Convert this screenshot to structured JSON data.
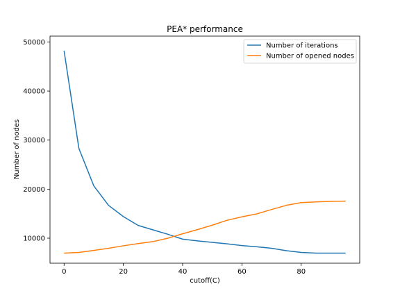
{
  "chart_data": {
    "type": "line",
    "title": "PEA* performance",
    "xlabel": "cutoff(C)",
    "ylabel": "Number of nodes",
    "xlim": [
      -4.75,
      99.75
    ],
    "ylim": [
      4900,
      51200
    ],
    "xticks": [
      0,
      20,
      40,
      60,
      80
    ],
    "yticks": [
      10000,
      20000,
      30000,
      40000,
      50000
    ],
    "x": [
      0,
      5,
      10,
      15,
      20,
      25,
      30,
      35,
      40,
      45,
      50,
      55,
      60,
      65,
      70,
      75,
      80,
      85,
      90,
      95
    ],
    "series": [
      {
        "name": "Number of iterations",
        "color": "#1f77b4",
        "values": [
          48200,
          28300,
          20700,
          16700,
          14400,
          12600,
          11700,
          10800,
          9800,
          9450,
          9150,
          8850,
          8500,
          8250,
          7950,
          7450,
          7100,
          6950,
          6950,
          6950
        ]
      },
      {
        "name": "Number of opened nodes",
        "color": "#ff7f0e",
        "values": [
          6950,
          7100,
          7500,
          7950,
          8450,
          8900,
          9300,
          10000,
          10900,
          11750,
          12650,
          13650,
          14350,
          14950,
          15850,
          16700,
          17250,
          17400,
          17500,
          17550
        ]
      }
    ],
    "legend_position": "top-right"
  }
}
